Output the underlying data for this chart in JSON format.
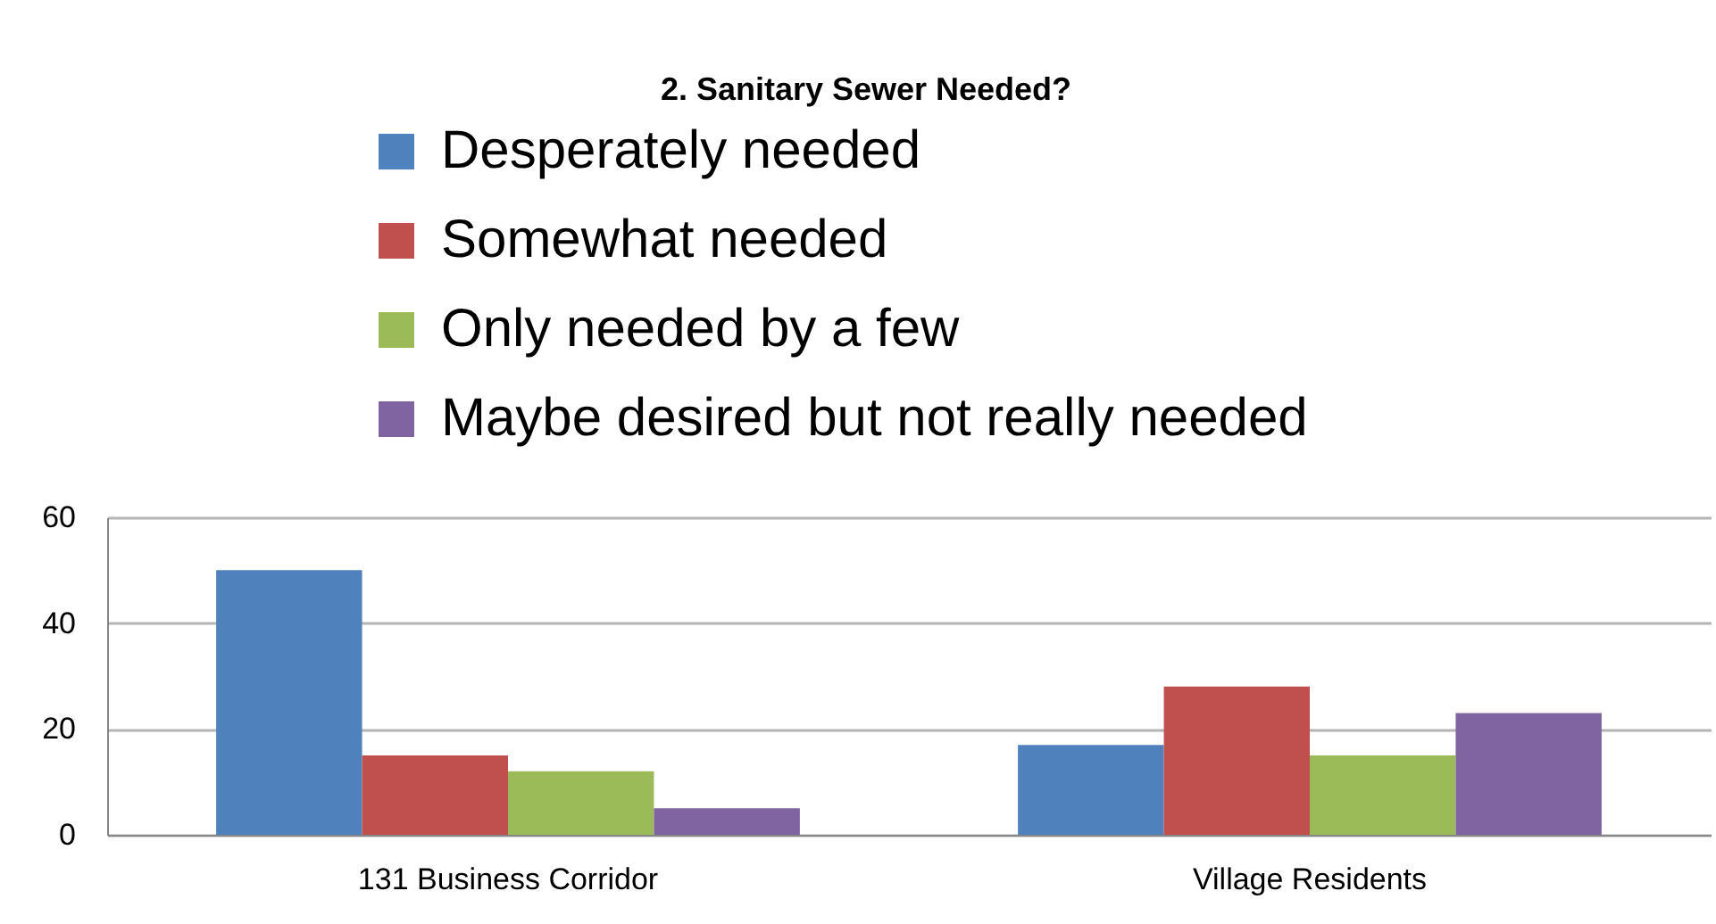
{
  "chart_data": {
    "type": "bar",
    "title": "2. Sanitary Sewer Needed?",
    "categories": [
      "131 Business Corridor",
      "Village Residents"
    ],
    "series": [
      {
        "name": "Desperately needed",
        "color": "#4f81bd",
        "values": [
          50,
          17
        ]
      },
      {
        "name": "Somewhat needed",
        "color": "#c0504d",
        "values": [
          15,
          28
        ]
      },
      {
        "name": "Only needed by a few",
        "color": "#9bbb59",
        "values": [
          12,
          15
        ]
      },
      {
        "name": "Maybe desired but not really needed",
        "color": "#8064a2",
        "values": [
          5,
          23
        ]
      }
    ],
    "ylim": [
      0,
      60
    ],
    "yticks": [
      0,
      20,
      40,
      60
    ],
    "grid": "y",
    "legend": "top"
  }
}
